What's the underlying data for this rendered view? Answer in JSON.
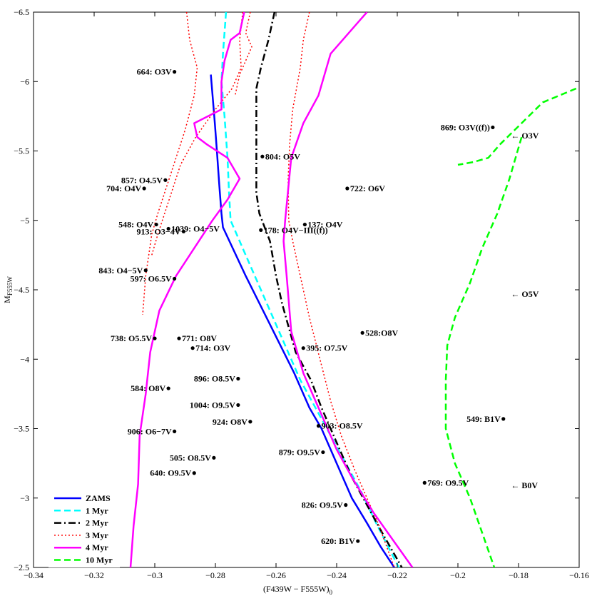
{
  "chart_data": {
    "type": "scatter",
    "title": "",
    "xlabel": "(F439W − F555W)",
    "xlabel_sub": "0",
    "ylabel": "M",
    "ylabel_sub": "F555W",
    "xlim": [
      -0.34,
      -0.16
    ],
    "ylim": [
      -2.5,
      -6.5
    ],
    "y_inverted": true,
    "xticks": [
      -0.34,
      -0.32,
      -0.3,
      -0.28,
      -0.26,
      -0.24,
      -0.22,
      -0.2,
      -0.18,
      -0.16
    ],
    "xtick_labels": [
      "−0.34",
      "−0.32",
      "−0.3",
      "−0.28",
      "−0.26",
      "−0.24",
      "−0.22",
      "−0.2",
      "−0.18",
      "−0.16"
    ],
    "yticks": [
      -6.5,
      -6,
      -5.5,
      -5,
      -4.5,
      -4,
      -3.5,
      -3,
      -2.5
    ],
    "ytick_labels": [
      "−6.5",
      "−6",
      "−5.5",
      "−5",
      "−4.5",
      "−4",
      "−3.5",
      "−3",
      "−2.5"
    ],
    "legend_position": "bottom-left",
    "series": [
      {
        "name": "ZAMS",
        "color": "#0000ff",
        "dash": "solid",
        "width": 2.5,
        "points": [
          [
            -0.2815,
            -6.05
          ],
          [
            -0.2802,
            -5.7
          ],
          [
            -0.2795,
            -5.5
          ],
          [
            -0.2787,
            -5.25
          ],
          [
            -0.278,
            -5.05
          ],
          [
            -0.2775,
            -4.95
          ],
          [
            -0.27,
            -4.6
          ],
          [
            -0.262,
            -4.25
          ],
          [
            -0.254,
            -3.9
          ],
          [
            -0.249,
            -3.65
          ],
          [
            -0.245,
            -3.5
          ],
          [
            -0.24,
            -3.25
          ],
          [
            -0.235,
            -3.0
          ],
          [
            -0.23,
            -2.82
          ],
          [
            -0.2255,
            -2.65
          ],
          [
            -0.221,
            -2.5
          ]
        ]
      },
      {
        "name": "1 Myr",
        "color": "#00ffff",
        "dash": "dashed",
        "width": 2.5,
        "points": [
          [
            -0.2765,
            -6.5
          ],
          [
            -0.2775,
            -6.2
          ],
          [
            -0.278,
            -6.0
          ],
          [
            -0.277,
            -5.75
          ],
          [
            -0.276,
            -5.45
          ],
          [
            -0.2755,
            -5.2
          ],
          [
            -0.275,
            -5.0
          ],
          [
            -0.27,
            -4.75
          ],
          [
            -0.264,
            -4.45
          ],
          [
            -0.258,
            -4.15
          ],
          [
            -0.252,
            -3.85
          ],
          [
            -0.247,
            -3.65
          ],
          [
            -0.242,
            -3.45
          ],
          [
            -0.237,
            -3.25
          ],
          [
            -0.232,
            -3.05
          ],
          [
            -0.227,
            -2.82
          ],
          [
            -0.2195,
            -2.5
          ]
        ]
      },
      {
        "name": "2 Myr",
        "color": "#000000",
        "dash": "dashdot",
        "width": 2.5,
        "points": [
          [
            -0.2605,
            -6.5
          ],
          [
            -0.2625,
            -6.3
          ],
          [
            -0.265,
            -6.1
          ],
          [
            -0.2665,
            -5.95
          ],
          [
            -0.2665,
            -5.6
          ],
          [
            -0.2665,
            -5.25
          ],
          [
            -0.2665,
            -5.2
          ],
          [
            -0.2655,
            -5.05
          ],
          [
            -0.262,
            -4.85
          ],
          [
            -0.26,
            -4.6
          ],
          [
            -0.258,
            -4.4
          ],
          [
            -0.2535,
            -4.05
          ],
          [
            -0.2485,
            -3.85
          ],
          [
            -0.245,
            -3.65
          ],
          [
            -0.24,
            -3.4
          ],
          [
            -0.235,
            -3.15
          ],
          [
            -0.23,
            -2.95
          ],
          [
            -0.225,
            -2.75
          ],
          [
            -0.2185,
            -2.5
          ]
        ]
      },
      {
        "name": "3 Myr",
        "color": "#ff0000",
        "dash": "dotted",
        "width": 1.5,
        "points": [
          [
            -0.249,
            -6.5
          ],
          [
            -0.251,
            -6.3
          ],
          [
            -0.252,
            -6.1
          ],
          [
            -0.2545,
            -5.8
          ],
          [
            -0.2555,
            -5.55
          ],
          [
            -0.256,
            -5.3
          ],
          [
            -0.2558,
            -5.0
          ],
          [
            -0.2545,
            -4.85
          ],
          [
            -0.252,
            -4.6
          ],
          [
            -0.249,
            -4.3
          ],
          [
            -0.2455,
            -4.0
          ],
          [
            -0.242,
            -3.7
          ],
          [
            -0.2385,
            -3.45
          ],
          [
            -0.234,
            -3.2
          ],
          [
            -0.23,
            -3.0
          ],
          [
            -0.226,
            -2.8
          ],
          [
            -0.221,
            -2.5
          ]
        ]
      },
      {
        "name": "3 Myr",
        "color": "#ff0000",
        "dash": "dotted",
        "width": 1.5,
        "points": [
          [
            -0.2895,
            -6.5
          ],
          [
            -0.2885,
            -6.3
          ],
          [
            -0.286,
            -6.1
          ],
          [
            -0.287,
            -5.9
          ],
          [
            -0.29,
            -5.65
          ],
          [
            -0.2945,
            -5.35
          ],
          [
            -0.299,
            -5.05
          ],
          [
            -0.301,
            -4.9
          ],
          [
            -0.303,
            -4.6
          ],
          [
            -0.304,
            -4.32
          ]
        ]
      },
      {
        "name": "3 Myr",
        "color": "#ff0000",
        "dash": "dotted",
        "width": 1.5,
        "points": [
          [
            -0.271,
            -6.5
          ],
          [
            -0.272,
            -6.3
          ],
          [
            -0.2715,
            -6.1
          ],
          [
            -0.2745,
            -5.95
          ],
          [
            -0.28,
            -5.8
          ],
          [
            -0.2865,
            -5.6
          ],
          [
            -0.2915,
            -5.4
          ],
          [
            -0.296,
            -5.1
          ],
          [
            -0.299,
            -4.9
          ],
          [
            -0.301,
            -4.75
          ]
        ]
      },
      {
        "name": "3 Myr",
        "color": "#ff0000",
        "dash": "dotted",
        "width": 1.5,
        "points": [
          [
            -0.2685,
            -6.5
          ],
          [
            -0.27,
            -6.35
          ],
          [
            -0.268,
            -6.25
          ],
          [
            -0.272,
            -6.05
          ],
          [
            -0.2735,
            -5.9
          ]
        ]
      },
      {
        "name": "4 Myr",
        "color": "#ff00ff",
        "dash": "solid",
        "width": 2.5,
        "points": [
          [
            -0.23,
            -6.5
          ],
          [
            -0.242,
            -6.2
          ],
          [
            -0.246,
            -5.9
          ],
          [
            -0.251,
            -5.7
          ],
          [
            -0.255,
            -5.45
          ],
          [
            -0.257,
            -5.0
          ],
          [
            -0.2575,
            -4.85
          ],
          [
            -0.2565,
            -4.6
          ],
          [
            -0.255,
            -4.2
          ],
          [
            -0.251,
            -3.9
          ],
          [
            -0.245,
            -3.6
          ],
          [
            -0.24,
            -3.35
          ],
          [
            -0.235,
            -3.15
          ],
          [
            -0.228,
            -2.9
          ],
          [
            -0.2215,
            -2.7
          ],
          [
            -0.215,
            -2.5
          ]
        ]
      },
      {
        "name": "4 Myr",
        "color": "#ff00ff",
        "dash": "solid",
        "width": 2.5,
        "points": [
          [
            -0.2705,
            -6.5
          ],
          [
            -0.272,
            -6.35
          ],
          [
            -0.275,
            -6.3
          ],
          [
            -0.277,
            -6.15
          ],
          [
            -0.278,
            -6.0
          ],
          [
            -0.278,
            -5.8
          ],
          [
            -0.287,
            -5.7
          ],
          [
            -0.286,
            -5.6
          ],
          [
            -0.283,
            -5.55
          ],
          [
            -0.276,
            -5.45
          ],
          [
            -0.272,
            -5.3
          ],
          [
            -0.276,
            -5.15
          ],
          [
            -0.281,
            -5.0
          ],
          [
            -0.287,
            -4.8
          ],
          [
            -0.293,
            -4.6
          ],
          [
            -0.2985,
            -4.35
          ],
          [
            -0.3015,
            -4.05
          ],
          [
            -0.303,
            -3.75
          ],
          [
            -0.305,
            -3.45
          ],
          [
            -0.3055,
            -3.1
          ],
          [
            -0.307,
            -2.8
          ],
          [
            -0.308,
            -2.5
          ]
        ]
      },
      {
        "name": "10 Myr",
        "color": "#00ff00",
        "dash": "dashed",
        "width": 2.5,
        "points": [
          [
            -0.161,
            -5.95
          ],
          [
            -0.172,
            -5.85
          ],
          [
            -0.179,
            -5.7
          ],
          [
            -0.186,
            -5.55
          ],
          [
            -0.19,
            -5.45
          ],
          [
            -0.195,
            -5.42
          ],
          [
            -0.2,
            -5.4
          ]
        ]
      },
      {
        "name": "10 Myr",
        "color": "#00ff00",
        "dash": "dashed",
        "width": 2.5,
        "points": [
          [
            -0.179,
            -5.6
          ],
          [
            -0.183,
            -5.3
          ],
          [
            -0.187,
            -5.05
          ],
          [
            -0.192,
            -4.8
          ],
          [
            -0.196,
            -4.55
          ],
          [
            -0.201,
            -4.3
          ],
          [
            -0.2035,
            -4.1
          ],
          [
            -0.204,
            -3.85
          ],
          [
            -0.204,
            -3.5
          ],
          [
            -0.201,
            -3.25
          ],
          [
            -0.196,
            -3.0
          ],
          [
            -0.192,
            -2.75
          ],
          [
            -0.188,
            -2.5
          ]
        ]
      }
    ],
    "legend": [
      {
        "label": "ZAMS",
        "color": "#0000ff",
        "dash": "solid"
      },
      {
        "label": "1 Myr",
        "color": "#00ffff",
        "dash": "dashed"
      },
      {
        "label": "2 Myr",
        "color": "#000000",
        "dash": "dashdot"
      },
      {
        "label": "3 Myr",
        "color": "#ff0000",
        "dash": "dotted"
      },
      {
        "label": "4 Myr",
        "color": "#ff00ff",
        "dash": "solid"
      },
      {
        "label": "10 Myr",
        "color": "#00ff00",
        "dash": "dashed"
      }
    ],
    "stars": [
      {
        "label": "664: O3V",
        "x": -0.2935,
        "y": -6.07,
        "pos": "left"
      },
      {
        "label": "869: O3V((f))",
        "x": -0.1885,
        "y": -5.67,
        "pos": "left"
      },
      {
        "label": "804: O5V",
        "x": -0.2645,
        "y": -5.46,
        "pos": "right"
      },
      {
        "label": "857: O4.5V",
        "x": -0.2965,
        "y": -5.29,
        "pos": "left"
      },
      {
        "label": "704: O4V",
        "x": -0.3035,
        "y": -5.23,
        "pos": "left"
      },
      {
        "label": "722: O6V",
        "x": -0.2365,
        "y": -5.23,
        "pos": "right"
      },
      {
        "label": "548: O4V",
        "x": -0.2995,
        "y": -4.97,
        "pos": "left"
      },
      {
        "label": "1039: O4−5V",
        "x": -0.2955,
        "y": -4.94,
        "pos": "right"
      },
      {
        "label": "913: O3−4V",
        "x": -0.2905,
        "y": -4.92,
        "pos": "left"
      },
      {
        "label": "137: O4V",
        "x": -0.2505,
        "y": -4.97,
        "pos": "right"
      },
      {
        "label": "178: O4V−III((f))",
        "x": -0.265,
        "y": -4.93,
        "pos": "right"
      },
      {
        "label": "843: O4−5V",
        "x": -0.303,
        "y": -4.64,
        "pos": "left"
      },
      {
        "label": "597: O6.5V",
        "x": -0.2935,
        "y": -4.58,
        "pos": "left"
      },
      {
        "label": "528:O8V",
        "x": -0.2315,
        "y": -4.19,
        "pos": "right"
      },
      {
        "label": "738: O5.5V",
        "x": -0.3,
        "y": -4.15,
        "pos": "left"
      },
      {
        "label": "771: O8V",
        "x": -0.292,
        "y": -4.15,
        "pos": "right"
      },
      {
        "label": "714: O3V",
        "x": -0.2875,
        "y": -4.08,
        "pos": "right"
      },
      {
        "label": "395: O7.5V",
        "x": -0.251,
        "y": -4.08,
        "pos": "right"
      },
      {
        "label": "896: O8.5V",
        "x": -0.2725,
        "y": -3.86,
        "pos": "left"
      },
      {
        "label": "584: O8V",
        "x": -0.2955,
        "y": -3.79,
        "pos": "left"
      },
      {
        "label": "1004: O9.5V",
        "x": -0.2725,
        "y": -3.67,
        "pos": "left"
      },
      {
        "label": "549: B1V",
        "x": -0.185,
        "y": -3.57,
        "pos": "left"
      },
      {
        "label": "924: O8V",
        "x": -0.2685,
        "y": -3.55,
        "pos": "left"
      },
      {
        "label": "903: O8.5V",
        "x": -0.246,
        "y": -3.52,
        "pos": "right"
      },
      {
        "label": "906: O6−7V",
        "x": -0.2935,
        "y": -3.48,
        "pos": "left"
      },
      {
        "label": "879: O9.5V",
        "x": -0.2445,
        "y": -3.33,
        "pos": "left"
      },
      {
        "label": "505: O8.5V",
        "x": -0.2805,
        "y": -3.29,
        "pos": "left"
      },
      {
        "label": "640: O9.5V",
        "x": -0.287,
        "y": -3.18,
        "pos": "left"
      },
      {
        "label": "769: O9.5V",
        "x": -0.211,
        "y": -3.11,
        "pos": "right"
      },
      {
        "label": "826: O9.5V",
        "x": -0.237,
        "y": -2.95,
        "pos": "left"
      },
      {
        "label": "620: B1V",
        "x": -0.233,
        "y": -2.69,
        "pos": "left"
      }
    ],
    "reference_marks": [
      {
        "label": "← O3V",
        "x": -0.1825,
        "y": -5.61
      },
      {
        "label": "← O5V",
        "x": -0.1825,
        "y": -4.47
      },
      {
        "label": "← B0V",
        "x": -0.1825,
        "y": -3.09
      }
    ]
  }
}
